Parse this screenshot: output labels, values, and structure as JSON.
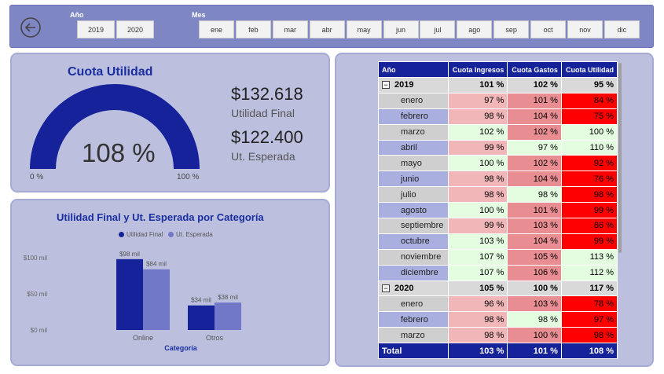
{
  "filters": {
    "year_label": "Año",
    "years": [
      "2019",
      "2020"
    ],
    "month_label": "Mes",
    "months": [
      "ene",
      "feb",
      "mar",
      "abr",
      "may",
      "jun",
      "jul",
      "ago",
      "sep",
      "oct",
      "nov",
      "dic"
    ]
  },
  "gauge": {
    "title": "Cuota Utilidad",
    "value_text": "108 %",
    "value": 108,
    "min_label": "0 %",
    "max_label": "100 %",
    "color": "#15229a"
  },
  "kpis": {
    "final_value": "$132.618",
    "final_label": "Utilidad Final",
    "expected_value": "$122.400",
    "expected_label": "Ut. Esperada"
  },
  "chart_data": {
    "type": "bar",
    "title": "Utilidad Final y Ut. Esperada por Categoría",
    "xlabel": "Categoría",
    "ylabel": "",
    "categories": [
      "Online",
      "Otros"
    ],
    "series": [
      {
        "name": "Utilidad Final",
        "values": [
          98,
          34
        ],
        "labels": [
          "$98 mil",
          "$34 mil"
        ],
        "color": "#15229a"
      },
      {
        "name": "Ut. Esperada",
        "values": [
          84,
          38
        ],
        "labels": [
          "$84 mil",
          "$38 mil"
        ],
        "color": "#7278c8"
      }
    ],
    "yticks": [
      "$100 mil",
      "$50 mil",
      "$0 mil"
    ],
    "ylim": [
      0,
      100
    ],
    "legend": "top"
  },
  "matrix": {
    "headers": [
      "Año",
      "Cuota Ingresos",
      "Cuota Gastos",
      "Cuota Utilidad"
    ],
    "rows": [
      {
        "type": "year",
        "label": "2019",
        "values": [
          "101 %",
          "102 %",
          "95 %"
        ],
        "colors": [
          "",
          "",
          ""
        ]
      },
      {
        "type": "month",
        "label": "enero",
        "values": [
          "97 %",
          "101 %",
          "84 %"
        ],
        "colors": [
          "#f0b6b8",
          "#e88e92",
          "#ff0000"
        ]
      },
      {
        "type": "month",
        "label": "febrero",
        "values": [
          "98 %",
          "104 %",
          "75 %"
        ],
        "colors": [
          "#f0b6b8",
          "#e88e92",
          "#ff0000"
        ]
      },
      {
        "type": "month",
        "label": "marzo",
        "values": [
          "102 %",
          "102 %",
          "100 %"
        ],
        "colors": [
          "#e4fde0",
          "#e88e92",
          "#e4fde0"
        ]
      },
      {
        "type": "month",
        "label": "abril",
        "values": [
          "99 %",
          "97 %",
          "110 %"
        ],
        "colors": [
          "#f0b6b8",
          "#e4fde0",
          "#e4fde0"
        ]
      },
      {
        "type": "month",
        "label": "mayo",
        "values": [
          "100 %",
          "102 %",
          "92 %"
        ],
        "colors": [
          "#e4fde0",
          "#e88e92",
          "#ff0000"
        ]
      },
      {
        "type": "month",
        "label": "junio",
        "values": [
          "98 %",
          "104 %",
          "76 %"
        ],
        "colors": [
          "#f0b6b8",
          "#e88e92",
          "#ff0000"
        ]
      },
      {
        "type": "month",
        "label": "julio",
        "values": [
          "98 %",
          "98 %",
          "98 %"
        ],
        "colors": [
          "#f0b6b8",
          "#e4fde0",
          "#ff0000"
        ]
      },
      {
        "type": "month",
        "label": "agosto",
        "values": [
          "100 %",
          "101 %",
          "99 %"
        ],
        "colors": [
          "#e4fde0",
          "#e88e92",
          "#ff0000"
        ]
      },
      {
        "type": "month",
        "label": "septiembre",
        "values": [
          "99 %",
          "103 %",
          "86 %"
        ],
        "colors": [
          "#f0b6b8",
          "#e88e92",
          "#ff0000"
        ]
      },
      {
        "type": "month",
        "label": "octubre",
        "values": [
          "103 %",
          "104 %",
          "99 %"
        ],
        "colors": [
          "#e4fde0",
          "#e88e92",
          "#ff0000"
        ]
      },
      {
        "type": "month",
        "label": "noviembre",
        "values": [
          "107 %",
          "105 %",
          "113 %"
        ],
        "colors": [
          "#e4fde0",
          "#e88e92",
          "#e4fde0"
        ]
      },
      {
        "type": "month",
        "label": "diciembre",
        "values": [
          "107 %",
          "106 %",
          "112 %"
        ],
        "colors": [
          "#e4fde0",
          "#e88e92",
          "#e4fde0"
        ]
      },
      {
        "type": "year",
        "label": "2020",
        "values": [
          "105 %",
          "100 %",
          "117 %"
        ],
        "colors": [
          "",
          "",
          ""
        ]
      },
      {
        "type": "month",
        "label": "enero",
        "values": [
          "96 %",
          "103 %",
          "78 %"
        ],
        "colors": [
          "#f0b6b8",
          "#e88e92",
          "#ff0000"
        ]
      },
      {
        "type": "month",
        "label": "febrero",
        "values": [
          "98 %",
          "98 %",
          "97 %"
        ],
        "colors": [
          "#f0b6b8",
          "#e4fde0",
          "#ff0000"
        ]
      },
      {
        "type": "month",
        "label": "marzo",
        "values": [
          "98 %",
          "100 %",
          "98 %"
        ],
        "colors": [
          "#f0b6b8",
          "#e88e92",
          "#ff0000"
        ]
      }
    ],
    "total": {
      "label": "Total",
      "values": [
        "103 %",
        "101 %",
        "108 %"
      ]
    }
  }
}
